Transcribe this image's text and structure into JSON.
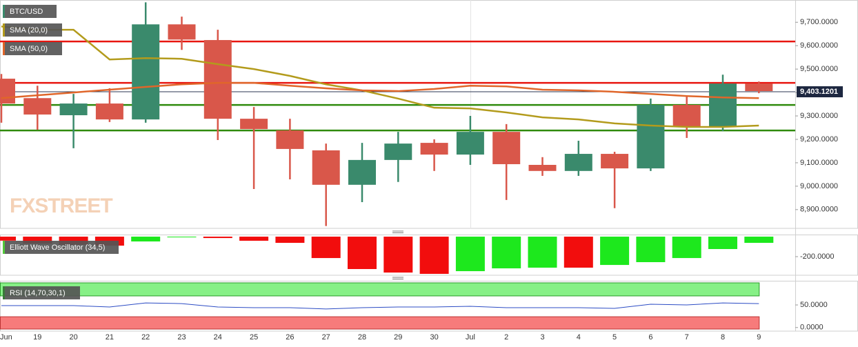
{
  "chart_data": [
    {
      "type": "candlestick",
      "series": [
        {
          "name": "BTC/USD",
          "up_color": "#3a8a6c",
          "down_color": "#d9574a",
          "open": [
            9459,
            9376,
            9303,
            9353,
            9285,
            9691,
            9624,
            9288,
            9238,
            9153,
            9006,
            9112,
            9185,
            9135,
            9232,
            9091,
            9065,
            9138,
            9076,
            9347,
            9253,
            9438
          ],
          "high": [
            9479,
            9429,
            9394,
            9418,
            9785,
            9724,
            9668,
            9338,
            9288,
            9182,
            9185,
            9232,
            9200,
            9300,
            9265,
            9124,
            9194,
            9147,
            9374,
            9382,
            9476,
            9447
          ],
          "low": [
            9271,
            9241,
            9162,
            9274,
            9271,
            9582,
            9197,
            8988,
            9029,
            8830,
            8932,
            9018,
            9065,
            9091,
            8941,
            9044,
            9044,
            8906,
            9065,
            9206,
            9235,
            9397
          ],
          "close": [
            9353,
            9306,
            9353,
            9285,
            9691,
            9626,
            9288,
            9244,
            9159,
            9006,
            9112,
            9182,
            9135,
            9232,
            9094,
            9065,
            9138,
            9076,
            9347,
            9253,
            9438,
            9406
          ]
        }
      ],
      "lines": [
        {
          "name": "SMA (20,0)",
          "color": "#b39b1c",
          "values": [
            9682,
            9668,
            9668,
            9541,
            9547,
            9544,
            9521,
            9500,
            9471,
            9435,
            9409,
            9374,
            9335,
            9332,
            9315,
            9294,
            9285,
            9268,
            9259,
            9253,
            9253,
            9259
          ]
        },
        {
          "name": "SMA (50,0)",
          "color": "#e0662a",
          "values": [
            9376,
            9388,
            9400,
            9412,
            9424,
            9435,
            9441,
            9441,
            9429,
            9418,
            9409,
            9406,
            9415,
            9429,
            9426,
            9412,
            9409,
            9403,
            9394,
            9385,
            9379,
            9376
          ]
        }
      ],
      "levels": [
        {
          "value": 9618,
          "color": "#e8150f"
        },
        {
          "value": 9441,
          "color": "#e8150f"
        },
        {
          "value": 9347,
          "color": "#2f8a0c"
        },
        {
          "value": 9238,
          "color": "#2f8a0c"
        }
      ],
      "last_price": {
        "value": 9403.1201,
        "label": "9,403.1201"
      },
      "watermark": "FXSTREET",
      "ylim": [
        8820,
        9795
      ],
      "yticks": [
        {
          "value": 8900,
          "label": "8,900.0000"
        },
        {
          "value": 9000,
          "label": "9,000.0000"
        },
        {
          "value": 9100,
          "label": "9,100.0000"
        },
        {
          "value": 9200,
          "label": "9,200.0000"
        },
        {
          "value": 9300,
          "label": "9,300.0000"
        },
        {
          "value": 9400,
          "label": "9,400.0000"
        },
        {
          "value": 9500,
          "label": "9,500.0000"
        },
        {
          "value": 9600,
          "label": "9,600.0000"
        },
        {
          "value": 9700,
          "label": "9,700.0000"
        }
      ]
    },
    {
      "type": "bar",
      "series": [
        {
          "name": "Elliott Wave Oscillator (34,5)",
          "color": "#52c93a",
          "values": [
            -40,
            -70,
            -80,
            -90,
            -48,
            -7,
            -14,
            -41,
            -62,
            -214,
            -324,
            -359,
            -372,
            -345,
            -317,
            -310,
            -310,
            -283,
            -255,
            -214,
            -124,
            -62
          ],
          "colors": [
            "#f20d0d",
            "#f20d0d",
            "#f20d0d",
            "#f20d0d",
            "#1de81d",
            "#1de81d",
            "#f20d0d",
            "#f20d0d",
            "#f20d0d",
            "#f20d0d",
            "#f20d0d",
            "#f20d0d",
            "#f20d0d",
            "#1de81d",
            "#1de81d",
            "#1de81d",
            "#f20d0d",
            "#1de81d",
            "#1de81d",
            "#1de81d",
            "#1de81d",
            "#1de81d"
          ]
        }
      ],
      "ylim": [
        -386,
        14
      ],
      "yticks": [
        {
          "value": -200,
          "label": "-200.0000"
        }
      ]
    },
    {
      "type": "line",
      "categories": [
        "Jun",
        "19",
        "20",
        "21",
        "22",
        "23",
        "24",
        "25",
        "26",
        "27",
        "28",
        "29",
        "30",
        "Jul",
        "2",
        "3",
        "4",
        "5",
        "6",
        "7",
        "8",
        "9"
      ],
      "series": [
        {
          "name": "RSI (14,70,30,1)",
          "color": "#2b4bc4",
          "values": [
            48.5,
            48.5,
            48.5,
            45.5,
            54.5,
            53,
            45.5,
            44,
            44,
            41,
            44,
            45.5,
            45.5,
            47,
            44,
            44,
            44,
            42.4,
            51.5,
            50,
            54.5,
            53
          ]
        }
      ],
      "overbought": 70,
      "oversold": 30,
      "overbought_color": "#86f086",
      "oversold_color": "#f77b7b",
      "ylim": [
        -8,
        102
      ],
      "yticks": [
        {
          "value": 50,
          "label": "50.0000"
        },
        {
          "value": 0,
          "label": "0.0000"
        }
      ]
    }
  ]
}
